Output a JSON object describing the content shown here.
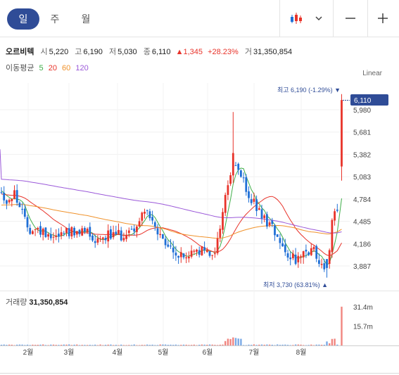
{
  "tabs": [
    {
      "label": "일",
      "active": true
    },
    {
      "label": "주",
      "active": false
    },
    {
      "label": "월",
      "active": false
    }
  ],
  "toolbar": {
    "chart_type_icon": "candlestick-icon",
    "dropdown_icon": "chevron-down-icon",
    "zoom_out_icon": "minus-icon",
    "zoom_in_icon": "plus-icon"
  },
  "stock": {
    "name": "오르비텍",
    "open_label": "시",
    "open": "5,220",
    "high_label": "고",
    "high": "6,190",
    "low_label": "저",
    "low": "5,030",
    "close_label": "종",
    "close": "6,110",
    "change": "▲1,345",
    "change_pct": "+28.23%",
    "volume_label": "거",
    "volume": "31,350,854"
  },
  "moving_average": {
    "label": "이동평균",
    "periods": [
      {
        "label": "5",
        "color": "#3fae49"
      },
      {
        "label": "20",
        "color": "#e8332a"
      },
      {
        "label": "60",
        "color": "#f0922b"
      },
      {
        "label": "120",
        "color": "#9b59d9"
      }
    ]
  },
  "scale_label": "Linear",
  "price_annotations": {
    "high": "최고 6,190 (-1.29%) ▼",
    "low": "최저 3,730 (63.81%) ▲",
    "current": "6,110"
  },
  "volume_header": {
    "label": "거래량",
    "value": "31,350,854"
  },
  "colors": {
    "up": "#e8332a",
    "down": "#1f6fd6",
    "accent": "#2f4c97"
  },
  "chart_data": [
    {
      "type": "candlestick",
      "title": "오르비텍",
      "x_ticks": [
        "2월",
        "3월",
        "4월",
        "5월",
        "6월",
        "7월",
        "8월"
      ],
      "y_ticks": [
        "5,980",
        "5,681",
        "5,382",
        "5,083",
        "4,784",
        "4,485",
        "4,186",
        "3,887"
      ],
      "ylim": [
        3680,
        6300
      ],
      "anchors": {
        "high": 6190,
        "low": 3730,
        "last_open": 5220,
        "last_close": 6110
      },
      "series": [
        {
          "name": "5",
          "color": "#3fae49"
        },
        {
          "name": "20",
          "color": "#e8332a"
        },
        {
          "name": "60",
          "color": "#f0922b"
        },
        {
          "name": "120",
          "color": "#9b59d9"
        }
      ]
    },
    {
      "type": "bar",
      "title": "거래량",
      "y_ticks": [
        "31.4m",
        "15.7m"
      ],
      "ylim": [
        0,
        33000000
      ],
      "last_value": 31350854
    }
  ]
}
